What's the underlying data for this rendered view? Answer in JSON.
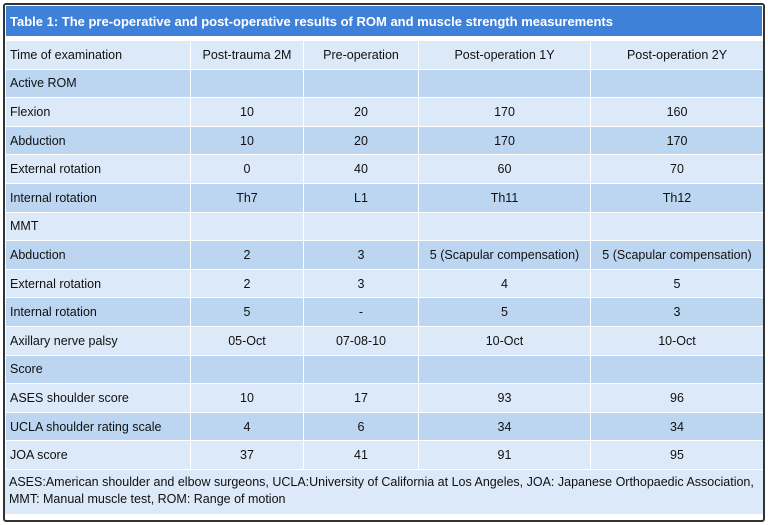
{
  "title": "Table 1: The pre-operative and post-operative results of ROM and muscle strength measurements",
  "table": {
    "header": [
      "Time of examination",
      "Post-trauma 2M",
      "Pre-operation",
      "Post-operation 1Y",
      "Post-operation 2Y"
    ],
    "rows": [
      [
        "Active ROM"
      ],
      [
        "Flexion",
        "10",
        "20",
        "170",
        "160"
      ],
      [
        "Abduction",
        "10",
        "20",
        "170",
        "170"
      ],
      [
        "External rotation",
        "0",
        "40",
        "60",
        "70"
      ],
      [
        "Internal rotation",
        "Th7",
        "L1",
        "Th11",
        "Th12"
      ],
      [
        "MMT"
      ],
      [
        "Abduction",
        "2",
        "3",
        "5 (Scapular compensation)",
        "5 (Scapular compensation)"
      ],
      [
        "External rotation",
        "2",
        "3",
        "4",
        "5"
      ],
      [
        "Internal rotation",
        "5",
        "-",
        "5",
        "3"
      ],
      [
        "Axillary nerve palsy",
        "05-Oct",
        "07-08-10",
        "10-Oct",
        "10-Oct"
      ],
      [
        "Score"
      ],
      [
        "ASES shoulder score",
        "10",
        "17",
        "93",
        "96"
      ],
      [
        "UCLA shoulder rating scale",
        "4",
        "6",
        "34",
        "34"
      ],
      [
        "JOA score",
        "37",
        "41",
        "91",
        "95"
      ]
    ]
  },
  "footnote": "ASES:American shoulder and elbow surgeons, UCLA:University of California at Los Angeles, JOA: Japanese Orthopaedic Association, MMT: Manual muscle test, ROM: Range of motion"
}
